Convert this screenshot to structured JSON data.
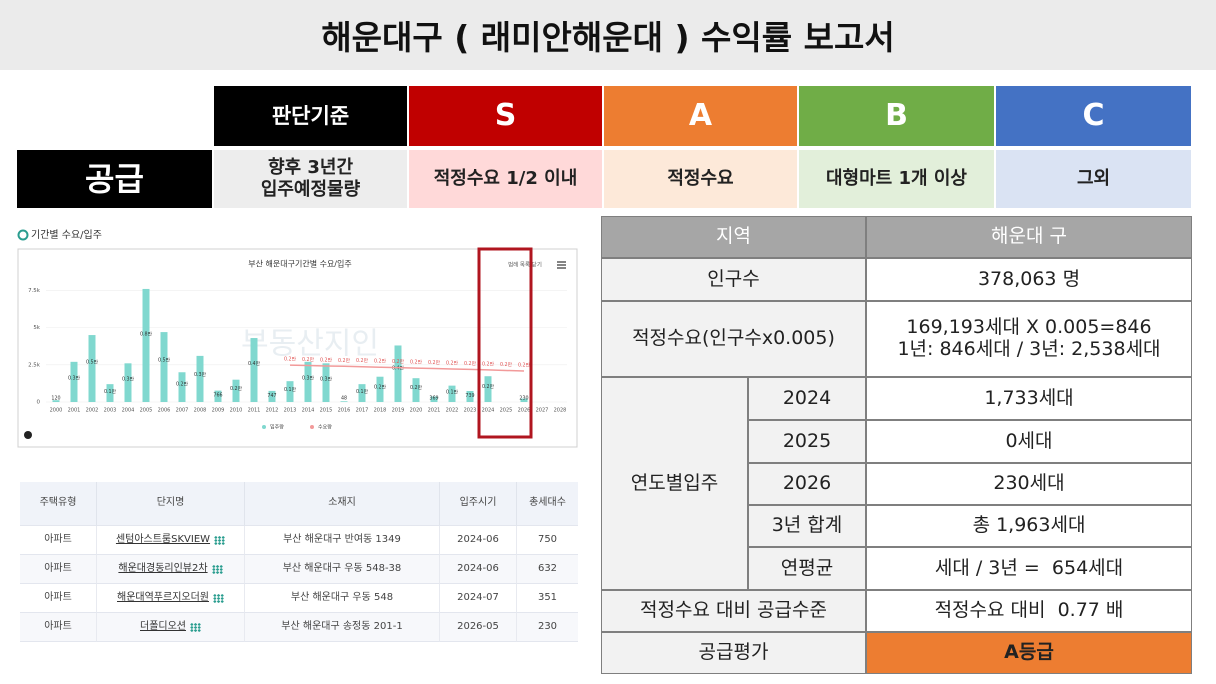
{
  "title": "해운대구 ( 래미안해운대 ) 수익률 보고서",
  "criteria": {
    "headers": [
      "판단기준",
      "S",
      "A",
      "B",
      "C"
    ],
    "label": "공급",
    "cells": [
      [
        "향후 3년간",
        "입주예정물량"
      ],
      [
        "적정수요 1/2 이내"
      ],
      [
        "적정수요"
      ],
      [
        "대형마트 1개 이상"
      ],
      [
        "그외"
      ]
    ]
  },
  "chart_heading": "기간별 수요/입주",
  "chart_data": {
    "type": "bar",
    "title": "부산 해운대구기간별 수요/입주",
    "menu_label": "범례 목록 닫기",
    "watermark": "부동산지인",
    "categories": [
      "2000",
      "2001",
      "2002",
      "2003",
      "2004",
      "2005",
      "2006",
      "2007",
      "2008",
      "2009",
      "2010",
      "2011",
      "2012",
      "2013",
      "2014",
      "2015",
      "2016",
      "2017",
      "2018",
      "2019",
      "2020",
      "2021",
      "2022",
      "2023",
      "2024",
      "2025",
      "2026",
      "2027",
      "2028"
    ],
    "ylim": [
      0,
      8000
    ],
    "yticks": [
      0,
      {
        "value": 2500,
        "label": "2.5k"
      },
      {
        "value": 5000,
        "label": "5k"
      },
      {
        "value": 7500,
        "label": "7.5k"
      }
    ],
    "series": [
      {
        "name": "입주량",
        "type": "bar",
        "color": "#80d8cf",
        "values": [
          120,
          2700,
          4500,
          1200,
          2600,
          7600,
          4700,
          2000,
          3100,
          766,
          1500,
          4300,
          747,
          1400,
          2700,
          2600,
          48,
          1200,
          1700,
          3800,
          1600,
          369,
          1100,
          739,
          1733,
          0,
          230,
          null,
          null
        ],
        "value_labels": [
          "120",
          "0.3만",
          "0.5만",
          "0.1만",
          "0.3만",
          "0.8만",
          "0.5만",
          "0.2만",
          "0.3만",
          "766",
          "0.2만",
          "0.4만",
          "747",
          "0.1만",
          "0.3만",
          "0.3만",
          "48",
          "0.1만",
          "0.2만",
          "0.4만",
          "0.2만",
          "369",
          "0.1만",
          "739",
          "0.2만",
          null,
          "230",
          null,
          null
        ]
      },
      {
        "name": "수요량",
        "type": "line",
        "color": "#f29a9a",
        "values": [
          null,
          null,
          null,
          null,
          null,
          null,
          null,
          null,
          null,
          null,
          null,
          null,
          null,
          2480,
          2450,
          2420,
          2400,
          2370,
          2340,
          2310,
          2280,
          2250,
          2220,
          2190,
          2160,
          2120,
          2080,
          null,
          null
        ],
        "value_labels": [
          null,
          null,
          null,
          null,
          null,
          null,
          null,
          null,
          null,
          null,
          null,
          null,
          null,
          "0.2만",
          "0.2만",
          "0.2만",
          "0.2만",
          "0.2만",
          "0.2만",
          "0.2만",
          "0.2만",
          "0.2만",
          "0.2만",
          "0.2만",
          "0.2만",
          "0.2만",
          "0.2만",
          null,
          null
        ]
      }
    ]
  },
  "complex_table": {
    "columns": [
      "주택유형",
      "단지명",
      "소재지",
      "입주시기",
      "총세대수"
    ],
    "rows": [
      [
        "아파트",
        "센텀아스트룸SKVIEW",
        "부산 해운대구 반여동 1349",
        "2024-06",
        "750"
      ],
      [
        "아파트",
        "해운대경동리인뷰2차",
        "부산 해운대구 우동 548-38",
        "2024-06",
        "632"
      ],
      [
        "아파트",
        "해운대역푸르지오더원",
        "부산 해운대구 우동 548",
        "2024-07",
        "351"
      ],
      [
        "아파트",
        "더폴디오션",
        "부산 해운대구 송정동 201-1",
        "2026-05",
        "230"
      ]
    ]
  },
  "report": {
    "header": [
      "지역",
      "해운대 구"
    ],
    "population": [
      "인구수",
      "378,063 명"
    ],
    "demand": [
      "적정수요(인구수x0.005)",
      "169,193세대 X 0.005=846",
      "1년: 846세대 / 3년: 2,538세대"
    ],
    "yearly_label": "연도별입주",
    "yearly": [
      [
        "2024",
        "1,733세대"
      ],
      [
        "2025",
        "0세대"
      ],
      [
        "2026",
        "230세대"
      ],
      [
        "3년 합계",
        "총 1,963세대"
      ],
      [
        "연평균",
        "세대 / 3년 =  654세대"
      ]
    ],
    "level": [
      "적정수요 대비 공급수준",
      "적정수요 대비  0.77 배"
    ],
    "rating": [
      "공급평가",
      "A등급"
    ]
  }
}
